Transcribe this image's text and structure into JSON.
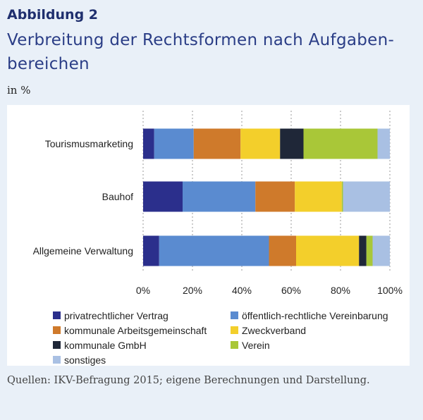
{
  "figure": {
    "label": "Abbildung 2",
    "title": "Verbreitung der Rechtsformen nach Aufgaben-bereichen",
    "title_line1": "Verbreitung der Rechtsformen nach Aufgaben-",
    "title_line2": "bereichen",
    "unit": "in %",
    "source": "Quellen: IKV-Befragung 2015; eigene Berechnungen und Darstellung."
  },
  "chart_data": {
    "type": "bar",
    "orientation": "horizontal",
    "stacked": true,
    "categories": [
      "Tourismusmarketing",
      "Bauhof",
      "Allgemeine Verwaltung"
    ],
    "xlim": [
      0,
      100
    ],
    "xticks": [
      "0%",
      "20%",
      "40%",
      "60%",
      "80%",
      "100%"
    ],
    "grid": "vertical dotted",
    "legend_position": "bottom",
    "series": [
      {
        "name": "privatrechtlicher Vertrag",
        "color": "#2b2f8c",
        "values": [
          4.5,
          16,
          6.5
        ]
      },
      {
        "name": "öffentlich-rechtliche Vereinbarung",
        "color": "#5a8bd0",
        "values": [
          16,
          29.5,
          44.5
        ]
      },
      {
        "name": "kommunale Arbeitsgemeinschaft",
        "color": "#cf7a2b",
        "values": [
          19,
          16,
          11
        ]
      },
      {
        "name": "Zweckverband",
        "color": "#f3cf2b",
        "values": [
          16,
          19,
          25.5
        ]
      },
      {
        "name": "kommunale GmbH",
        "color": "#1f2738",
        "values": [
          9.5,
          0,
          3
        ]
      },
      {
        "name": "Verein",
        "color": "#a9c738",
        "values": [
          30,
          0.5,
          2.5
        ]
      },
      {
        "name": "sonstiges",
        "color": "#a9c0e3",
        "values": [
          5,
          19,
          7
        ]
      }
    ]
  }
}
